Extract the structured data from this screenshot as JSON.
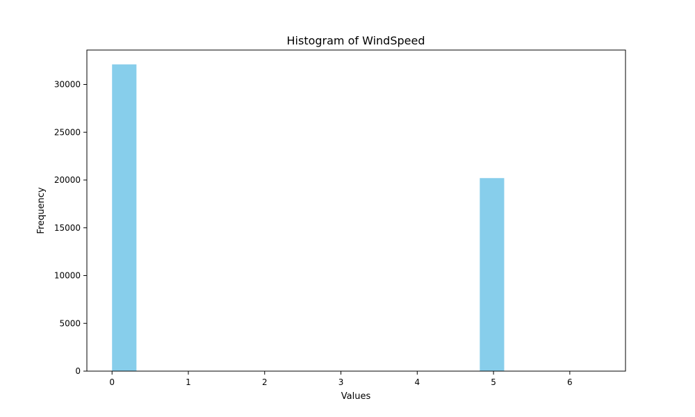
{
  "chart_data": {
    "type": "bar",
    "title": "Histogram of WindSpeed",
    "xlabel": "Values",
    "ylabel": "Frequency",
    "xlim": [
      -0.33,
      6.73
    ],
    "ylim": [
      0,
      33600
    ],
    "bar_color": "#87CEEB",
    "x_ticks": [
      0,
      1,
      2,
      3,
      4,
      5,
      6
    ],
    "y_ticks": [
      0,
      5000,
      10000,
      15000,
      20000,
      25000,
      30000
    ],
    "bins": [
      {
        "x0": 0.0,
        "x1": 0.32,
        "value": 32100
      },
      {
        "x0": 4.82,
        "x1": 5.14,
        "value": 20200
      }
    ],
    "grid": false,
    "legend": false
  }
}
